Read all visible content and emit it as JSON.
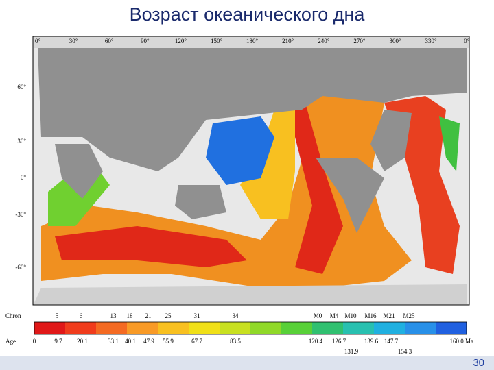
{
  "title": "Возраст океанического дна",
  "map": {
    "longitude_labels": [
      "0°",
      "30°",
      "60°",
      "90°",
      "120°",
      "150°",
      "180°",
      "210°",
      "240°",
      "270°",
      "300°",
      "330°",
      "0°"
    ],
    "latitude_labels": [
      "60°",
      "30°",
      "0°",
      "-30°",
      "-60°"
    ]
  },
  "legend": {
    "chron_label": "Chron",
    "chrons": [
      "5",
      "6",
      "13",
      "18",
      "21",
      "25",
      "31",
      "34",
      "M0",
      "M4",
      "M10",
      "M16",
      "M21",
      "M25"
    ],
    "age_label": "Age",
    "ages": [
      "0",
      "9.7",
      "20.1",
      "33.1",
      "40.1",
      "47.9",
      "55.9",
      "67.7",
      "83.5",
      "120.4",
      "126.7",
      "139.6",
      "147.7",
      "160.0 Ma"
    ],
    "ages_lower": [
      "131.9",
      "154.3"
    ],
    "colors": [
      "#e01818",
      "#f03c1c",
      "#f46a22",
      "#f89a26",
      "#f8c020",
      "#f0e018",
      "#c8e020",
      "#90d828",
      "#58d038",
      "#30c070",
      "#28c0b0",
      "#20b0e0",
      "#2890e8",
      "#2060e0"
    ]
  },
  "slide_number": "30"
}
